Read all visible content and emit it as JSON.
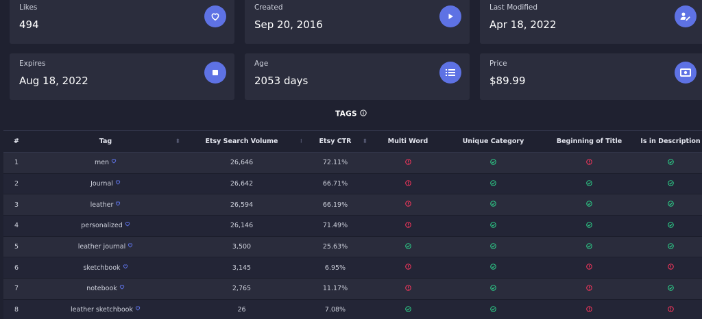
{
  "cards": [
    {
      "label": "Likes",
      "value": "494",
      "icon": "heart-icon"
    },
    {
      "label": "Created",
      "value": "Sep 20, 2016",
      "icon": "play-icon"
    },
    {
      "label": "Last Modified",
      "value": "Apr 18, 2022",
      "icon": "user-edit-icon"
    },
    {
      "label": "Expires",
      "value": "Aug 18, 2022",
      "icon": "stop-icon"
    },
    {
      "label": "Age",
      "value": "2053 days",
      "icon": "list-icon"
    },
    {
      "label": "Price",
      "value": "$89.99",
      "icon": "money-icon"
    }
  ],
  "tags_section": {
    "title": "TAGS",
    "columns": [
      "#",
      "Tag",
      "Etsy Search Volume",
      "Etsy CTR",
      "Multi Word",
      "Unique Category",
      "Beginning of Title",
      "Is in Description"
    ],
    "rows": [
      {
        "num": "1",
        "tag": "men",
        "volume": "26,646",
        "ctr": "72.11%",
        "multi": false,
        "unique": true,
        "beginning": false,
        "desc": true
      },
      {
        "num": "2",
        "tag": "Journal",
        "volume": "26,642",
        "ctr": "66.71%",
        "multi": false,
        "unique": true,
        "beginning": true,
        "desc": true
      },
      {
        "num": "3",
        "tag": "leather",
        "volume": "26,594",
        "ctr": "66.19%",
        "multi": false,
        "unique": true,
        "beginning": true,
        "desc": true
      },
      {
        "num": "4",
        "tag": "personalized",
        "volume": "26,146",
        "ctr": "71.49%",
        "multi": false,
        "unique": true,
        "beginning": true,
        "desc": true
      },
      {
        "num": "5",
        "tag": "leather journal",
        "volume": "3,500",
        "ctr": "25.63%",
        "multi": true,
        "unique": true,
        "beginning": true,
        "desc": true
      },
      {
        "num": "6",
        "tag": "sketchbook",
        "volume": "3,145",
        "ctr": "6.95%",
        "multi": false,
        "unique": true,
        "beginning": false,
        "desc": false
      },
      {
        "num": "7",
        "tag": "notebook",
        "volume": "2,765",
        "ctr": "11.17%",
        "multi": false,
        "unique": true,
        "beginning": false,
        "desc": true
      },
      {
        "num": "8",
        "tag": "leather sketchbook",
        "volume": "26",
        "ctr": "7.08%",
        "multi": true,
        "unique": true,
        "beginning": false,
        "desc": false
      }
    ]
  },
  "colors": {
    "accent": "#5e72e4",
    "success": "#2dce89",
    "danger": "#f5365c",
    "heart": "#5e72e4"
  }
}
